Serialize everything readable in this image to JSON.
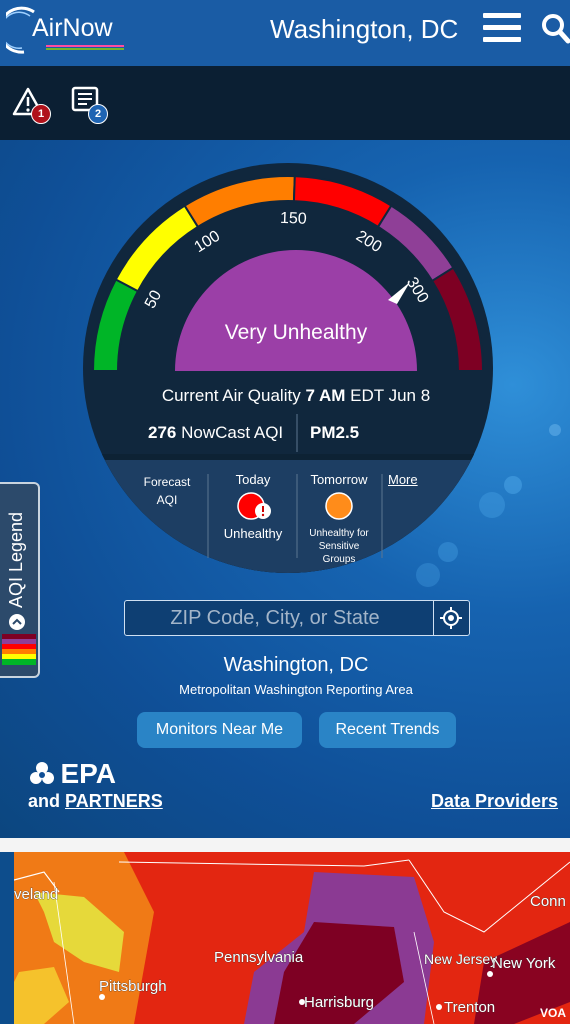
{
  "header": {
    "logo_text": "AirNow",
    "location_title": "Washington, DC",
    "menu_icon": "hamburger-menu-icon",
    "search_icon": "search-icon"
  },
  "alerts": {
    "warning_icon": "warning-triangle-icon",
    "warning_count": "1",
    "news_icon": "news-document-icon",
    "news_count": "2",
    "colors": {
      "warning_badge": "#b0121b",
      "news_badge": "#1f64b3"
    }
  },
  "gauge": {
    "category": "Very Unhealthy",
    "category_color": "#9b3fa7",
    "ticks": [
      "50",
      "100",
      "150",
      "200",
      "300"
    ],
    "segment_colors": [
      "#00b527",
      "#ffff00",
      "#ff7e00",
      "#ff0000",
      "#8f3f97",
      "#7e0023"
    ],
    "aqi_value": 276
  },
  "current": {
    "label": "Current Air Quality",
    "time": "7 AM",
    "rest": "EDT Jun 8",
    "aqi_number": "276",
    "aqi_label": "NowCast AQI",
    "pollutant": "PM2.5"
  },
  "forecast": {
    "heading_line1": "Forecast",
    "heading_line2": "AQI",
    "today_label": "Today",
    "today_status": "Unhealthy",
    "today_color": "#ff0000",
    "tomorrow_label": "Tomorrow",
    "tomorrow_status_line1": "Unhealthy for",
    "tomorrow_status_line2": "Sensitive",
    "tomorrow_status_line3": "Groups",
    "tomorrow_color": "#ff8c1a",
    "more_link": "More"
  },
  "search": {
    "placeholder": "ZIP Code, City, or State",
    "locate_icon": "crosshair-locate-icon"
  },
  "location": {
    "name": "Washington, DC",
    "area": "Metropolitan Washington Reporting Area"
  },
  "buttons": {
    "monitors": "Monitors Near Me",
    "trends": "Recent Trends"
  },
  "footer": {
    "epa_logo_text": "EPA",
    "and_text": "and",
    "partners_link": "PARTNERS",
    "data_providers_link": "Data Providers"
  },
  "legend_tab": {
    "label": "AQI Legend"
  },
  "map": {
    "labels": [
      "veland",
      "Pennsylvania",
      "Pittsburgh",
      "Harrisburg",
      "New Jersey",
      "New York",
      "Trenton",
      "Conn"
    ]
  },
  "watermark": "VOA"
}
